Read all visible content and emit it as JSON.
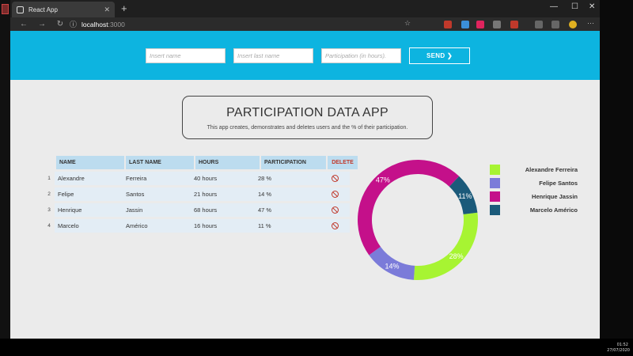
{
  "browser": {
    "tab_title": "React App",
    "address_host": "localhost",
    "address_port": ":3000"
  },
  "taskbar": {
    "time": "01:52",
    "date": "27/07/2020"
  },
  "form": {
    "first_name_placeholder": "Insert name",
    "last_name_placeholder": "Insert last name",
    "participation_placeholder": "Participation (in hours).",
    "send_label": "SEND ❯"
  },
  "app": {
    "title": "PARTICIPATION DATA APP",
    "subtitle": "This app creates, demonstrates and deletes users and the % of their participation."
  },
  "table": {
    "headers": [
      "NAME",
      "LAST NAME",
      "HOURS",
      "PARTICIPATION",
      "DELETE"
    ],
    "rows": [
      {
        "index": "1",
        "name": "Alexandre",
        "last_name": "Ferreira",
        "hours": "40 hours",
        "participation": "28 %"
      },
      {
        "index": "2",
        "name": "Felipe",
        "last_name": "Santos",
        "hours": "21 hours",
        "participation": "14 %"
      },
      {
        "index": "3",
        "name": "Henrique",
        "last_name": "Jassin",
        "hours": "68 hours",
        "participation": "47 %"
      },
      {
        "index": "4",
        "name": "Marcelo",
        "last_name": "Américo",
        "hours": "16 hours",
        "participation": "11 %"
      }
    ]
  },
  "chart_data": {
    "type": "pie",
    "categories": [
      "Alexandre Ferreira",
      "Felipe Santos",
      "Henrique Jassin",
      "Marcelo Américo"
    ],
    "values": [
      28,
      14,
      47,
      11
    ],
    "labels": [
      "28%",
      "14%",
      "47%",
      "11%"
    ],
    "colors": [
      "#a7f432",
      "#7b7bd9",
      "#c4108a",
      "#1b5a7a"
    ],
    "donut": true,
    "legend_position": "right"
  },
  "colors": {
    "header_bg": "#0db4e0",
    "page_bg": "#ebebeb",
    "delete_red": "#c0392b"
  }
}
